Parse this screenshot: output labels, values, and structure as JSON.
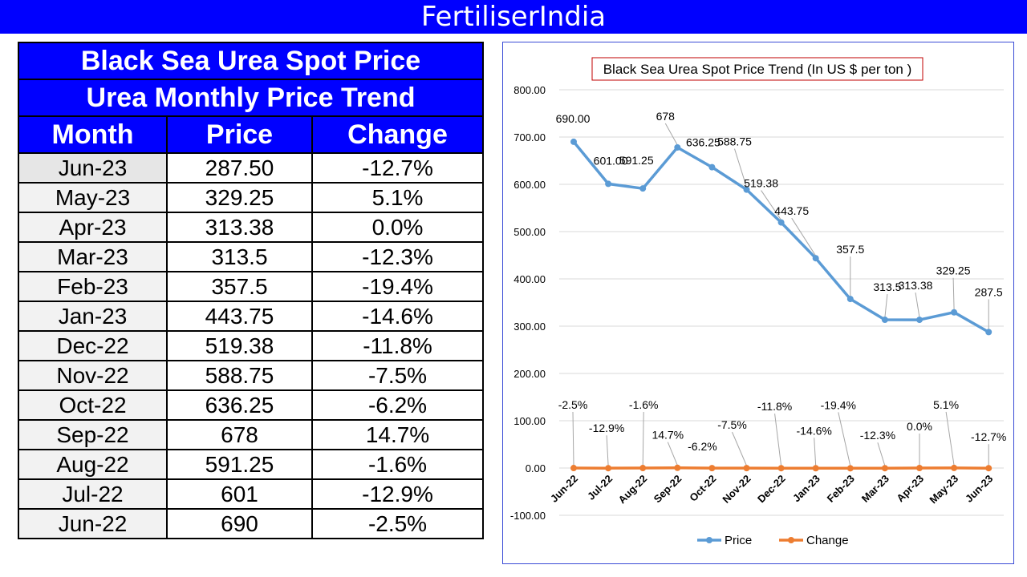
{
  "banner": {
    "title": "FertiliserIndia"
  },
  "table": {
    "title1": "Black Sea Urea Spot Price",
    "title2": "Urea Monthly Price Trend",
    "headers": [
      "Month",
      "Price",
      "Change"
    ],
    "rows": [
      {
        "month": "Jun-23",
        "price": "287.50",
        "change": "-12.7%"
      },
      {
        "month": "May-23",
        "price": "329.25",
        "change": "5.1%"
      },
      {
        "month": "Apr-23",
        "price": "313.38",
        "change": "0.0%"
      },
      {
        "month": "Mar-23",
        "price": "313.5",
        "change": "-12.3%"
      },
      {
        "month": "Feb-23",
        "price": "357.5",
        "change": "-19.4%"
      },
      {
        "month": "Jan-23",
        "price": "443.75",
        "change": "-14.6%"
      },
      {
        "month": "Dec-22",
        "price": "519.38",
        "change": "-11.8%"
      },
      {
        "month": "Nov-22",
        "price": "588.75",
        "change": "-7.5%"
      },
      {
        "month": "Oct-22",
        "price": "636.25",
        "change": "-6.2%"
      },
      {
        "month": "Sep-22",
        "price": "678",
        "change": "14.7%"
      },
      {
        "month": "Aug-22",
        "price": "591.25",
        "change": "-1.6%"
      },
      {
        "month": "Jul-22",
        "price": "601",
        "change": "-12.9%"
      },
      {
        "month": "Jun-22",
        "price": "690",
        "change": "-2.5%"
      }
    ]
  },
  "chart_data": {
    "type": "line",
    "title": "Black Sea Urea Spot Price Trend (In US $ per ton )",
    "categories": [
      "Jun-22",
      "Jul-22",
      "Aug-22",
      "Sep-22",
      "Oct-22",
      "Nov-22",
      "Dec-22",
      "Jan-23",
      "Feb-23",
      "Mar-23",
      "Apr-23",
      "May-23",
      "Jun-23"
    ],
    "series": [
      {
        "name": "Price",
        "color": "#5b9bd5",
        "values": [
          690,
          601,
          591.25,
          678,
          636.25,
          588.75,
          519.38,
          443.75,
          357.5,
          313.5,
          313.38,
          329.25,
          287.5
        ],
        "labels": [
          "690.00",
          "601.00",
          "591.25",
          "678",
          "636.25",
          "588.75",
          "519.38",
          "443.75",
          "357.5",
          "313.5",
          "313.38",
          "329.25",
          "287.5"
        ]
      },
      {
        "name": "Change",
        "color": "#ed7d31",
        "values": [
          -0.025,
          -0.129,
          -0.016,
          0.147,
          -0.062,
          -0.075,
          -0.118,
          -0.146,
          -0.194,
          -0.123,
          0.0,
          0.051,
          -0.127
        ],
        "labels": [
          "-2.5%",
          "-12.9%",
          "-1.6%",
          "14.7%",
          "-6.2%",
          "-7.5%",
          "-11.8%",
          "-14.6%",
          "-19.4%",
          "-12.3%",
          "0.0%",
          "5.1%",
          "-12.7%"
        ]
      }
    ],
    "yticks": [
      "800.00",
      "700.00",
      "600.00",
      "500.00",
      "400.00",
      "300.00",
      "200.00",
      "100.00",
      "0.00",
      "-100.00"
    ],
    "ylim": [
      -100,
      800
    ],
    "grid": true,
    "legend": "bottom"
  }
}
